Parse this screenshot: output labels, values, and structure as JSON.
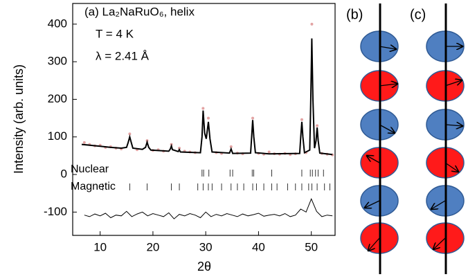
{
  "chart_data": {
    "type": "line",
    "annotations": [
      "(a) La₂NaRuO₆, helix",
      "T = 4 K",
      "λ = 2.41 Å"
    ],
    "x_label": "2θ",
    "y_label": "Intensity (arb. units)",
    "xlim": [
      4.8,
      54.5
    ],
    "ylim": [
      -162,
      455
    ],
    "xticks": [
      10,
      20,
      30,
      40,
      50
    ],
    "yticks": [
      -100,
      0,
      100,
      200,
      300,
      400
    ],
    "series": [
      {
        "style": "points",
        "color": "#e3a3a3",
        "x": [
          7,
          8,
          9,
          10,
          11,
          12,
          13,
          14,
          15.6,
          17,
          18.9,
          20,
          21,
          22,
          23.5,
          25,
          26,
          27,
          28,
          29.5,
          30.5,
          32,
          33,
          34.8,
          36,
          37,
          38.9,
          40,
          41,
          42,
          43,
          44,
          45,
          46,
          47,
          48.2,
          49,
          50.1,
          51.1,
          52,
          53,
          54
        ],
        "values": [
          85,
          80,
          76,
          78,
          72,
          74,
          70,
          68,
          108,
          66,
          90,
          64,
          66,
          62,
          80,
          70,
          62,
          60,
          58,
          176,
          150,
          58,
          56,
          74,
          57,
          55,
          150,
          56,
          54,
          60,
          55,
          54,
          56,
          53,
          55,
          146,
          58,
          400,
          130,
          56,
          54,
          52
        ]
      },
      {
        "style": "line",
        "color": "#000000",
        "x": [
          6.5,
          8,
          10,
          12,
          14,
          15,
          15.3,
          15.6,
          15.9,
          16.2,
          18,
          18.6,
          18.9,
          19.2,
          19.6,
          23,
          23.3,
          23.5,
          23.7,
          24.8,
          25,
          25.2,
          29,
          29.3,
          29.5,
          29.8,
          30.1,
          30.5,
          30.8,
          31.2,
          34.5,
          34.8,
          35.1,
          38.5,
          38.7,
          38.9,
          39.1,
          39.4,
          42,
          47.8,
          48,
          48.2,
          48.4,
          48.7,
          49.7,
          49.9,
          50.1,
          50.3,
          50.6,
          50.9,
          51.1,
          51.3,
          51.6,
          54
        ],
        "values": [
          80,
          78,
          75,
          72,
          70,
          72,
          85,
          100,
          85,
          70,
          67,
          72,
          86,
          72,
          65,
          62,
          68,
          76,
          66,
          61,
          66,
          60,
          58,
          100,
          170,
          110,
          95,
          140,
          95,
          60,
          57,
          68,
          56,
          57,
          100,
          145,
          100,
          58,
          55,
          56,
          100,
          140,
          100,
          58,
          65,
          200,
          362,
          200,
          70,
          90,
          125,
          90,
          57,
          53
        ]
      },
      {
        "style": "line",
        "color": "#000000",
        "x": [
          7,
          8,
          9,
          10,
          11,
          12,
          13,
          14,
          15,
          16,
          17,
          18,
          19,
          20,
          21,
          22,
          23,
          24,
          25,
          26,
          27,
          28,
          29,
          30,
          31,
          32,
          33,
          34,
          35,
          36,
          37,
          38,
          39,
          40,
          41,
          42,
          43,
          44,
          45,
          46,
          47,
          48,
          49,
          50,
          51,
          52,
          53,
          54
        ],
        "values": [
          -108,
          -112,
          -105,
          -110,
          -103,
          -115,
          -108,
          -110,
          -98,
          -112,
          -105,
          -100,
          -110,
          -104,
          -108,
          -112,
          -102,
          -118,
          -106,
          -110,
          -104,
          -108,
          -115,
          -100,
          -112,
          -106,
          -110,
          -104,
          -108,
          -112,
          -105,
          -110,
          -107,
          -103,
          -111,
          -108,
          -106,
          -110,
          -104,
          -112,
          -108,
          -92,
          -100,
          -65,
          -98,
          -112,
          -108,
          -110
        ]
      }
    ],
    "reflections": [
      {
        "label": "Nuclear",
        "x": [
          29.3,
          29.6,
          30.6,
          34.6,
          35.1,
          38.8,
          39.1,
          42.5,
          48.2,
          49.8,
          50.2,
          50.8,
          51.3,
          52.3
        ]
      },
      {
        "label": "Magnetic",
        "x": [
          10.5,
          15.6,
          18.9,
          23.5,
          25.0,
          28.5,
          29.5,
          30.5,
          31.2,
          33.0,
          34.8,
          36.0,
          37.2,
          38.9,
          39.6,
          41.0,
          42.5,
          43.5,
          45.5,
          47.0,
          48.2,
          49.5,
          50.1,
          51.1,
          52.5,
          53.5
        ]
      }
    ]
  },
  "diagram": {
    "panels": [
      {
        "label": "(b)"
      },
      {
        "label": "(c)"
      }
    ]
  }
}
